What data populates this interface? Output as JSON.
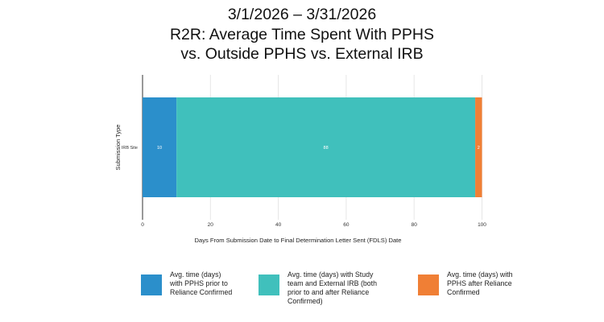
{
  "chart_data": {
    "type": "bar",
    "orientation": "horizontal",
    "stacked": true,
    "title_lines": [
      "3/1/2026 – 3/31/2026",
      "R2R: Average Time Spent With PPHS",
      "vs. Outside PPHS vs. External IRB"
    ],
    "xlabel": "Days From Submission Date to Final Determination Letter Sent (FDLS) Date",
    "ylabel": "Submission Type",
    "categories": [
      "IRB Site"
    ],
    "xlim": [
      0,
      100
    ],
    "xticks": [
      "0",
      "20",
      "40",
      "60",
      "80",
      "100"
    ],
    "grid": true,
    "legend_placement": "bottom",
    "series": [
      {
        "name": "Avg. time (days) with PPHS prior to Reliance Confirmed",
        "values": [
          10
        ],
        "labels": [
          "10"
        ],
        "color": "#2b8fcb"
      },
      {
        "name": "Avg. time (days) with Study team and External IRB (both prior to and after Reliance Confirmed)",
        "values": [
          88
        ],
        "labels": [
          "88"
        ],
        "color": "#40c0bc"
      },
      {
        "name": "Avg. time (days) with PPHS after Reliance Confirmed",
        "values": [
          2
        ],
        "labels": [
          "2"
        ],
        "color": "#f07f35"
      }
    ]
  },
  "legend": {
    "items": [
      "Avg. time (days)\nwith PPHS prior to\nReliance Confirmed",
      "Avg. time (days) with Study\nteam and External IRB (both\nprior to and after Reliance\nConfirmed)",
      "Avg. time (days) with\nPPHS after Reliance\nConfirmed"
    ]
  }
}
